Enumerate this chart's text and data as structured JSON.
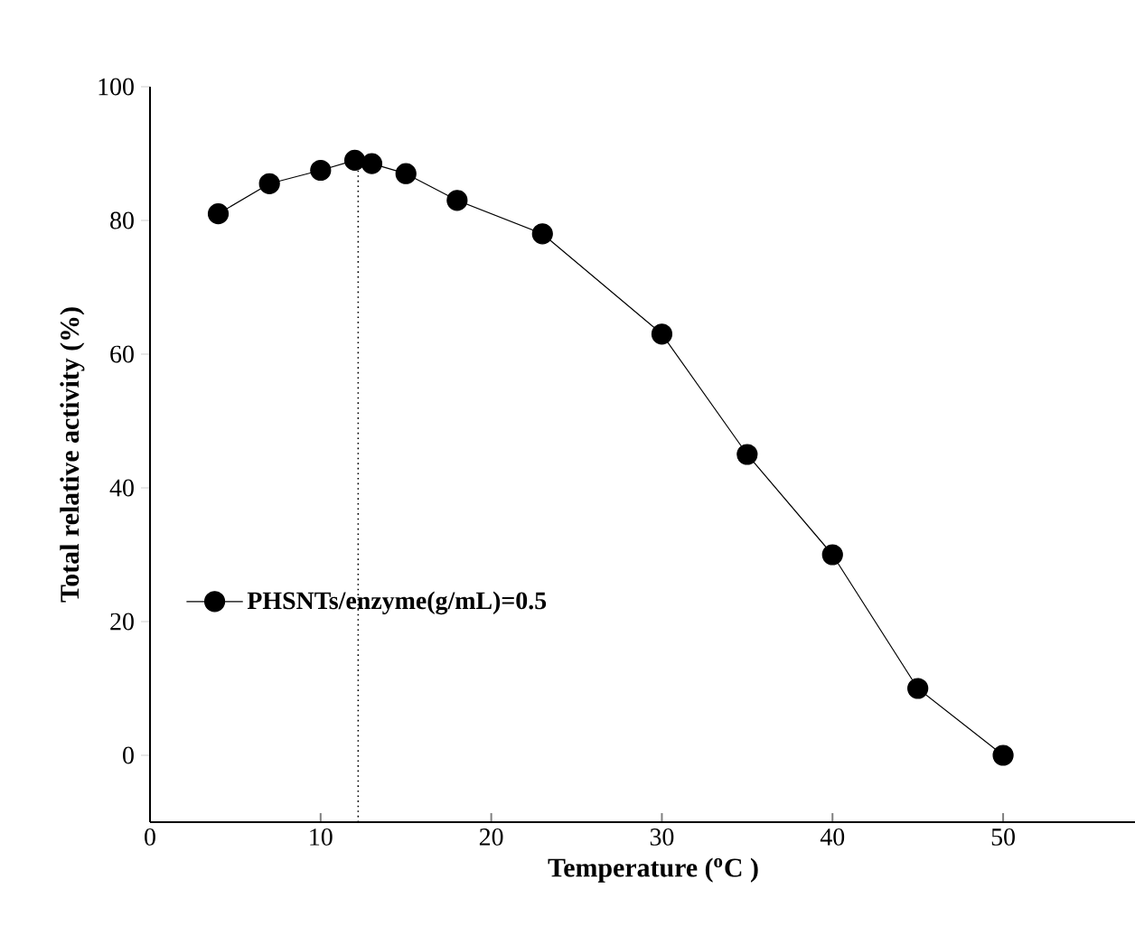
{
  "chart_data": {
    "type": "line",
    "xlabel": "Temperature ($^{o}$C )",
    "ylabel": "Total relative activity (%)",
    "x": [
      4,
      7,
      10,
      12,
      13,
      15,
      18,
      23,
      30,
      35,
      40,
      45,
      50
    ],
    "series": [
      {
        "name": "PHSNTs/enzyme(g/mL)=0.5",
        "color": "#000000",
        "values": [
          81,
          85.5,
          87.5,
          89,
          88.5,
          87,
          83,
          78,
          63,
          45,
          30,
          10,
          0
        ]
      }
    ],
    "xlim": [
      0,
      59
    ],
    "ylim": [
      -10,
      100
    ],
    "xticks": [
      0,
      10,
      20,
      30,
      40,
      50
    ],
    "yticks": [
      0,
      20,
      40,
      60,
      80,
      100
    ],
    "ref_lines": [
      {
        "axis": "x",
        "value": 12.2,
        "line_style": "dotted",
        "color": "#000000"
      }
    ],
    "marker": "circle",
    "line_style": "solid",
    "legend": "left",
    "grid": false
  }
}
